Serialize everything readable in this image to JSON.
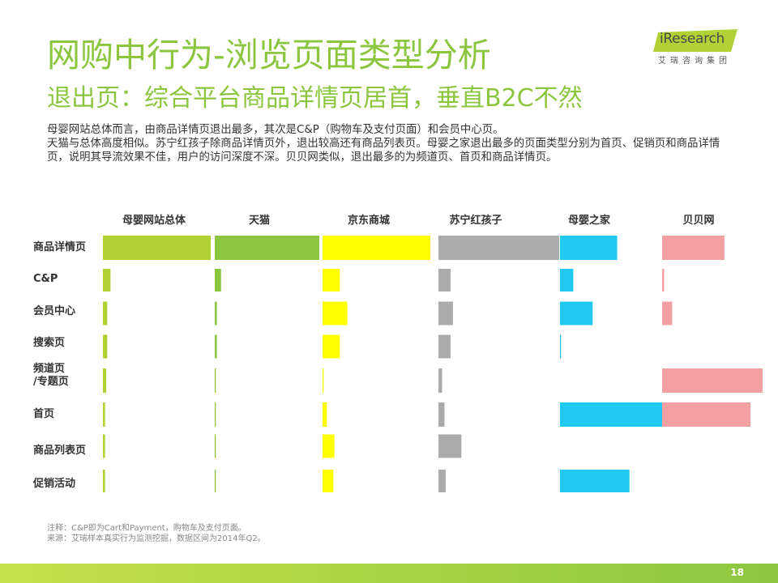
{
  "header": {
    "title": "网购中行为-浏览页面类型分析",
    "subtitle": "退出页：综合平台商品详情页居首，垂直B2C不然"
  },
  "logo": {
    "brand": "iResearch",
    "brand_cn": "艾瑞咨询集团"
  },
  "description": [
    "母婴网站总体而言，由商品详情页退出最多，其次是C&P（购物车及支付页面）和会员中心页。",
    "天猫与总体高度相似。苏宁红孩子除商品详情页外，退出较高还有商品列表页。母婴之家退出最多的页面类型分别为首页、促销页和商品详情页，说明其导流效果不佳，用户的访问深度不深。贝贝网类似，退出最多的为频道页、首页和商品详情页。"
  ],
  "chart_data": {
    "type": "bar",
    "orientation": "horizontal",
    "layout": "small-multiples",
    "categories": [
      "商品详情页",
      "C&P",
      "会员中心",
      "搜索页",
      "频道页\n/专题页",
      "首页",
      "商品列表页",
      "促销活动"
    ],
    "series": [
      {
        "name": "母婴网站总体",
        "color": "#b1d235",
        "values": [
          100,
          7,
          4,
          4,
          3,
          2,
          2,
          2
        ]
      },
      {
        "name": "天猫",
        "color": "#8cc63f",
        "values": [
          100,
          6,
          2,
          2,
          1,
          1,
          1,
          1
        ]
      },
      {
        "name": "京东商城",
        "color": "#ffff00",
        "values": [
          100,
          16,
          23,
          16,
          1,
          4,
          11,
          10
        ]
      },
      {
        "name": "苏宁红孩子",
        "color": "#ababab",
        "values": [
          100,
          10,
          12,
          10,
          3,
          5,
          19,
          6
        ]
      },
      {
        "name": "母婴之家",
        "color": "#21c8ef",
        "values": [
          56,
          13,
          32,
          1,
          0,
          100,
          0,
          68
        ]
      },
      {
        "name": "贝贝网",
        "color": "#f4a0a2",
        "values": [
          62,
          2,
          10,
          0,
          100,
          88,
          0,
          0
        ]
      }
    ],
    "xlim": [
      0,
      100
    ],
    "legend": "column-headers-top"
  },
  "footnote": [
    "注释：C&P即为Cart和Payment，购物车及支付页面。",
    "来源：艾瑞样本真实行为监测挖掘，数据区间为2014年Q2。"
  ],
  "page_number": "18",
  "colors": {
    "accent": "#8cc63f",
    "bar_bottom_light": "#c5e04a",
    "bar_bottom_dark": "#8cc63f"
  }
}
